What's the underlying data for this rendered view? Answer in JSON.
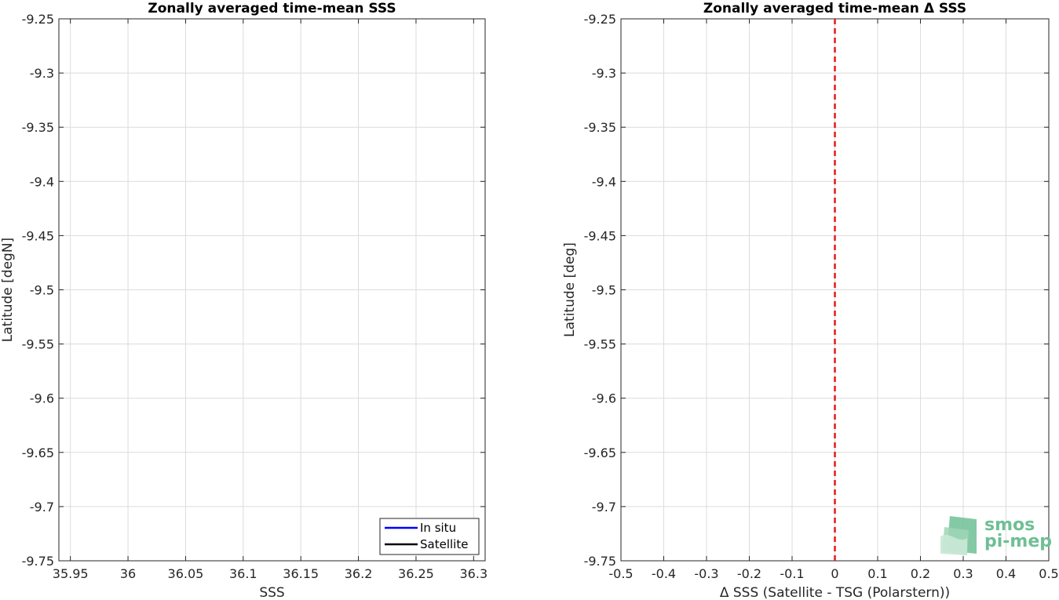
{
  "chart_data": [
    {
      "type": "line",
      "title": "Zonally averaged time-mean SSS",
      "xlabel": "SSS",
      "ylabel": "Latitude [degN]",
      "xlim": [
        35.94,
        36.31
      ],
      "ylim": [
        -9.75,
        -9.25
      ],
      "xticks": [
        35.95,
        36,
        36.05,
        36.1,
        36.15,
        36.2,
        36.25,
        36.3
      ],
      "xtick_labels": [
        "35.95",
        "36",
        "36.05",
        "36.1",
        "36.15",
        "36.2",
        "36.25",
        "36.3"
      ],
      "yticks": [
        -9.25,
        -9.3,
        -9.35,
        -9.4,
        -9.45,
        -9.5,
        -9.55,
        -9.6,
        -9.65,
        -9.7,
        -9.75
      ],
      "ytick_labels": [
        "-9.25",
        "-9.3",
        "-9.35",
        "-9.4",
        "-9.45",
        "-9.5",
        "-9.55",
        "-9.6",
        "-9.65",
        "-9.7",
        "-9.75"
      ],
      "grid": true,
      "legend_position": "bottom-right",
      "series": [
        {
          "name": "In situ",
          "color": "#0000ff",
          "x": [],
          "y": []
        },
        {
          "name": "Satellite",
          "color": "#000000",
          "x": [],
          "y": []
        }
      ]
    },
    {
      "type": "line",
      "title": "Zonally averaged time-mean Δ SSS",
      "xlabel": "Δ SSS (Satellite - TSG (Polarstern))",
      "ylabel": "Latitude [deg]",
      "xlim": [
        -0.5,
        0.5
      ],
      "ylim": [
        -9.75,
        -9.25
      ],
      "xticks": [
        -0.5,
        -0.4,
        -0.3,
        -0.2,
        -0.1,
        0,
        0.1,
        0.2,
        0.3,
        0.4,
        0.5
      ],
      "xtick_labels": [
        "-0.5",
        "-0.4",
        "-0.3",
        "-0.2",
        "-0.1",
        "0",
        "0.1",
        "0.2",
        "0.3",
        "0.4",
        "0.5"
      ],
      "yticks": [
        -9.25,
        -9.3,
        -9.35,
        -9.4,
        -9.45,
        -9.5,
        -9.55,
        -9.6,
        -9.65,
        -9.7,
        -9.75
      ],
      "ytick_labels": [
        "-9.25",
        "-9.3",
        "-9.35",
        "-9.4",
        "-9.45",
        "-9.5",
        "-9.55",
        "-9.6",
        "-9.65",
        "-9.7",
        "-9.75"
      ],
      "grid": true,
      "reference_line": {
        "x": 0,
        "color": "#e41a1c",
        "style": "dashed"
      },
      "series": []
    }
  ],
  "logo": {
    "line1": "smos",
    "line2": "pi-mep",
    "color": "#6fbf95"
  }
}
